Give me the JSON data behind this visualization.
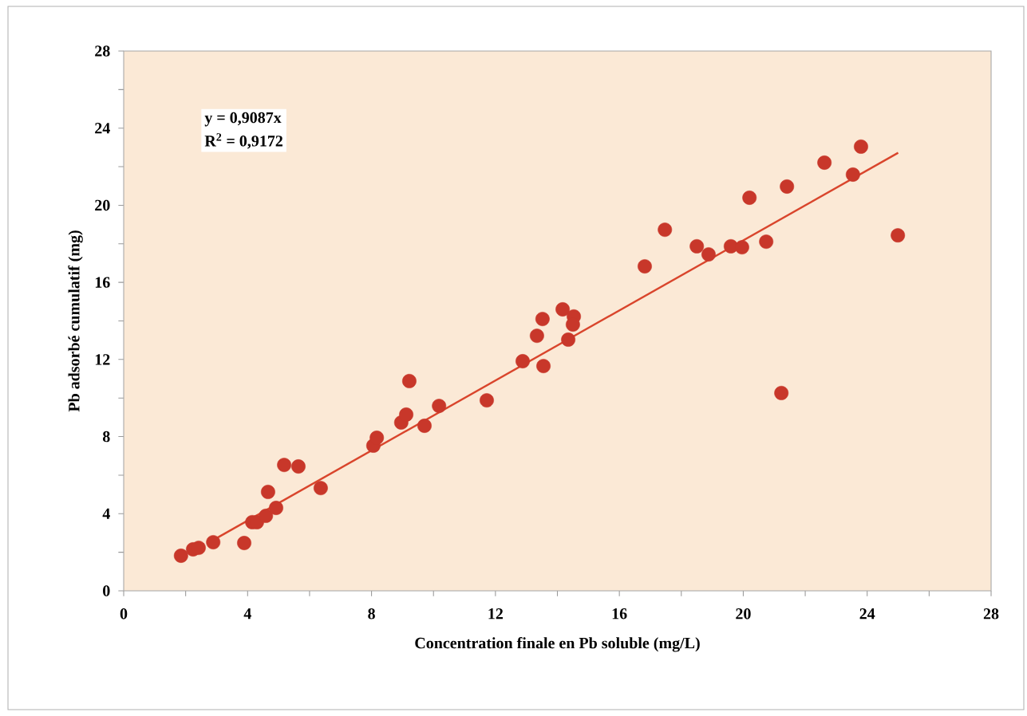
{
  "chart_data": {
    "type": "scatter",
    "xlabel": "Concentration finale en Pb soluble (mg/L)",
    "ylabel": "Pb adsorbé cumulatif (mg)",
    "annotations": [
      "y = 0,9087x",
      "R$^{2}$ = 0,9172"
    ],
    "xlim": [
      0,
      28
    ],
    "ylim": [
      0,
      28
    ],
    "xticks": [
      0,
      {
        "value": 2,
        "label": null
      },
      4,
      {
        "value": 6,
        "label": null
      },
      8,
      {
        "value": 10,
        "label": null
      },
      12,
      {
        "value": 14,
        "label": null
      },
      16,
      {
        "value": 18,
        "label": null
      },
      20,
      {
        "value": 22,
        "label": null
      },
      24,
      {
        "value": 26,
        "label": null
      },
      28
    ],
    "yticks": [
      0,
      {
        "value": 2,
        "label": null
      },
      4,
      {
        "value": 6,
        "label": null
      },
      8,
      {
        "value": 10,
        "label": null
      },
      12,
      {
        "value": 14,
        "label": null
      },
      16,
      {
        "value": 18,
        "label": null
      },
      20,
      {
        "value": 22,
        "label": null
      },
      24,
      {
        "value": 26,
        "label": null
      },
      28
    ],
    "grid": false,
    "legend": false,
    "series": [
      {
        "color": "#c8372a",
        "marker": "circle",
        "x": [
          1.85,
          2.24,
          2.42,
          2.89,
          3.89,
          4.15,
          4.3,
          4.59,
          4.66,
          4.92,
          5.18,
          5.64,
          6.36,
          8.06,
          8.17,
          8.96,
          9.12,
          9.22,
          9.71,
          10.18,
          11.72,
          12.88,
          13.34,
          13.52,
          13.55,
          14.17,
          14.35,
          14.53,
          14.5,
          16.82,
          17.47,
          18.5,
          18.88,
          19.6,
          19.96,
          20.2,
          20.74,
          21.23,
          21.41,
          22.62,
          23.54,
          23.8,
          24.99
        ],
        "values": [
          1.82,
          2.15,
          2.23,
          2.52,
          2.48,
          3.56,
          3.56,
          3.89,
          5.13,
          4.3,
          6.53,
          6.45,
          5.33,
          7.53,
          7.94,
          8.73,
          9.14,
          10.88,
          8.56,
          9.59,
          9.88,
          11.91,
          13.23,
          14.1,
          11.66,
          14.6,
          13.03,
          14.23,
          13.81,
          16.83,
          18.73,
          17.87,
          17.45,
          17.87,
          17.82,
          20.39,
          18.11,
          10.26,
          20.97,
          22.21,
          21.59,
          23.04,
          18.44
        ]
      },
      {
        "type": "line",
        "color": "#d9452c",
        "marker": "none",
        "line_style": "solid",
        "x": [
          2.9,
          25
        ],
        "values": [
          2.64,
          22.72
        ]
      }
    ]
  }
}
